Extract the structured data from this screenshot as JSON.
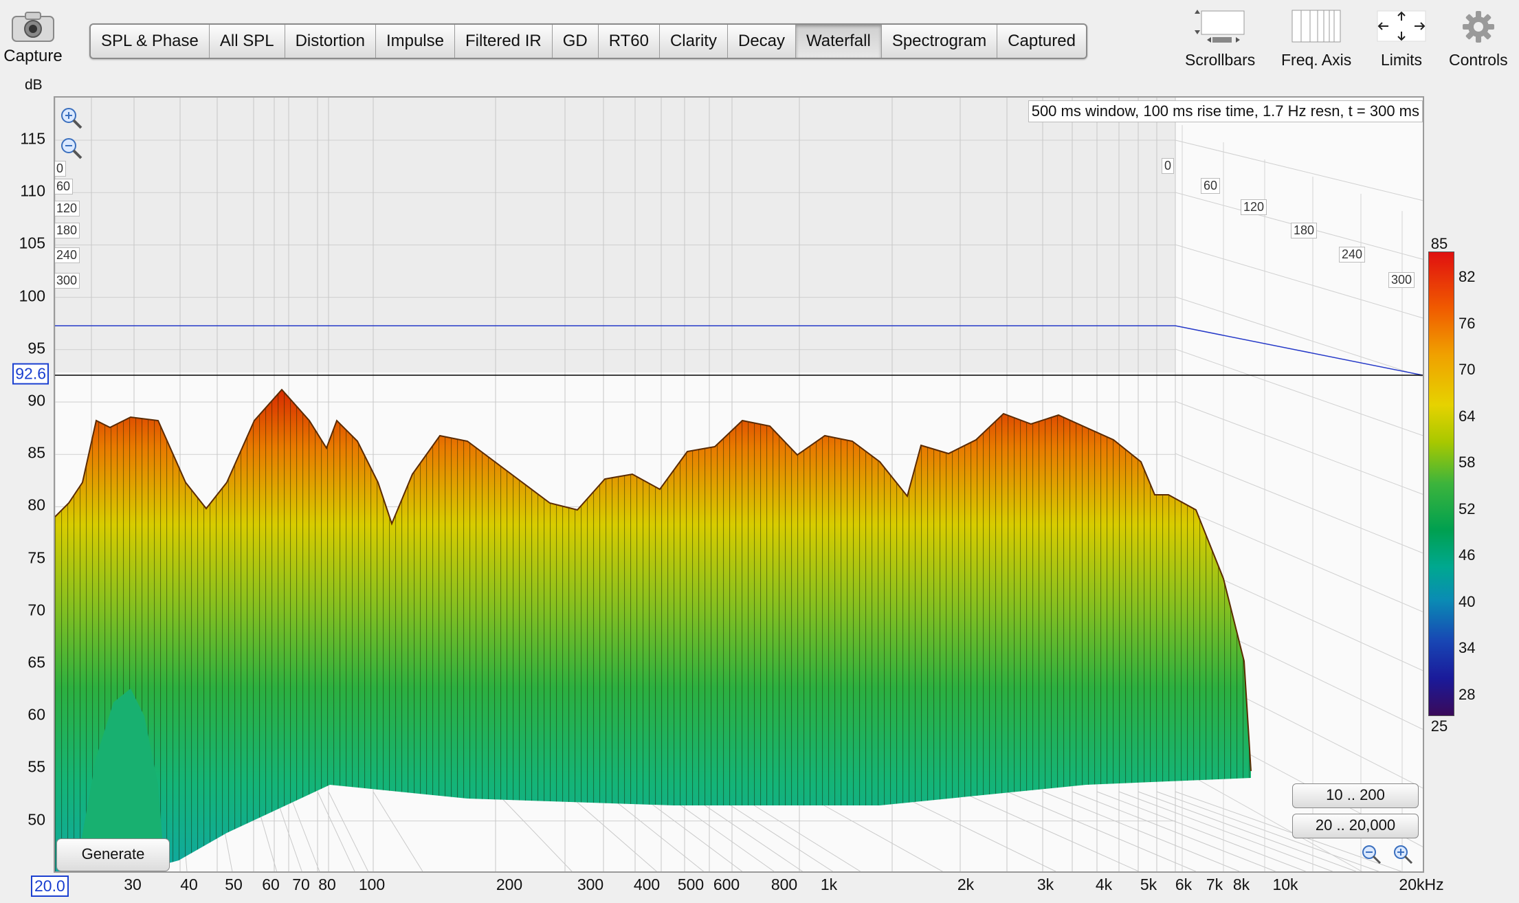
{
  "capture": {
    "label": "Capture"
  },
  "tabs": [
    "SPL & Phase",
    "All SPL",
    "Distortion",
    "Impulse",
    "Filtered IR",
    "GD",
    "RT60",
    "Clarity",
    "Decay",
    "Waterfall",
    "Spectrogram",
    "Captured"
  ],
  "active_tab": "Waterfall",
  "tools": {
    "scrollbars": "Scrollbars",
    "freq_axis": "Freq. Axis",
    "limits": "Limits",
    "controls": "Controls"
  },
  "y_axis": {
    "unit": "dB",
    "ticks": [
      "115",
      "110",
      "105",
      "100",
      "95",
      "90",
      "85",
      "80",
      "75",
      "70",
      "65",
      "60",
      "55",
      "50"
    ],
    "cursor_value": "92.6"
  },
  "x_axis": {
    "start_value": "20.0",
    "ticks": [
      "30",
      "40",
      "50",
      "60",
      "70",
      "80",
      "100",
      "200",
      "300",
      "400",
      "500",
      "600",
      "800",
      "1k",
      "2k",
      "3k",
      "4k",
      "5k",
      "6k",
      "7k",
      "8k",
      "10k",
      "20kHz"
    ]
  },
  "plot": {
    "info": "500 ms window, 100 ms rise time,  1.7 Hz resn, t = 300 ms",
    "time_labels": [
      "0",
      "60",
      "120",
      "180",
      "240",
      "300"
    ],
    "generate_label": "Generate",
    "range_buttons": [
      "10 .. 200",
      "20 .. 20,000"
    ]
  },
  "color_scale": {
    "max": "85",
    "min": "25",
    "ticks": [
      "82",
      "76",
      "70",
      "64",
      "58",
      "52",
      "46",
      "40",
      "34",
      "28"
    ]
  },
  "colors": {
    "accent": "#1a3fd0",
    "active_tab_bg": "#d8d8d8"
  }
}
